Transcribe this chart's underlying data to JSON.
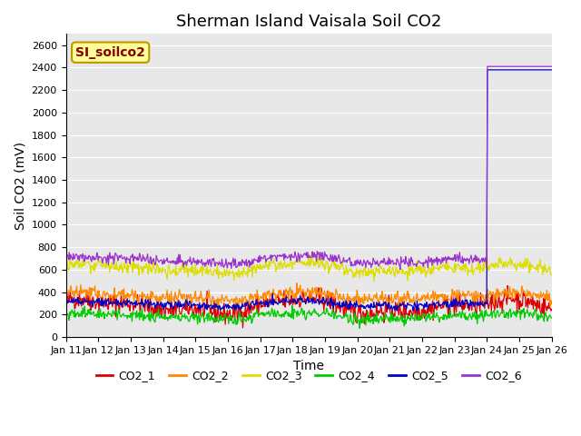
{
  "title": "Sherman Island Vaisala Soil CO2",
  "ylabel": "Soil CO2 (mV)",
  "xlabel": "Time",
  "legend_label": "SI_soilco2",
  "ylim": [
    0,
    2700
  ],
  "yticks": [
    0,
    200,
    400,
    600,
    800,
    1000,
    1200,
    1400,
    1600,
    1800,
    2000,
    2200,
    2400,
    2600
  ],
  "bg_color": "#e8e8e8",
  "series": {
    "CO2_1": {
      "color": "#dd0000",
      "base": 270,
      "amp": 55,
      "noise": 45
    },
    "CO2_2": {
      "color": "#ff8800",
      "base": 360,
      "amp": 30,
      "noise": 30
    },
    "CO2_3": {
      "color": "#dddd00",
      "base": 610,
      "amp": 35,
      "noise": 28
    },
    "CO2_4": {
      "color": "#00cc00",
      "base": 185,
      "amp": 28,
      "noise": 25
    },
    "CO2_5": {
      "color": "#0000cc",
      "base": 295,
      "amp": 22,
      "noise": 18
    },
    "CO2_6": {
      "color": "#9933cc",
      "base": 685,
      "amp": 28,
      "noise": 22
    }
  },
  "spike_day": 13.0,
  "spike_value_co5": 2380,
  "spike_value_co6": 2410,
  "n_days": 15,
  "start_day": 11,
  "grid_color": "#ffffff",
  "title_fontsize": 13,
  "axis_fontsize": 10,
  "tick_fontsize": 8,
  "legend_box_color": "#ffff99",
  "legend_box_edge": "#bb9900",
  "legend_text_color": "#880000"
}
